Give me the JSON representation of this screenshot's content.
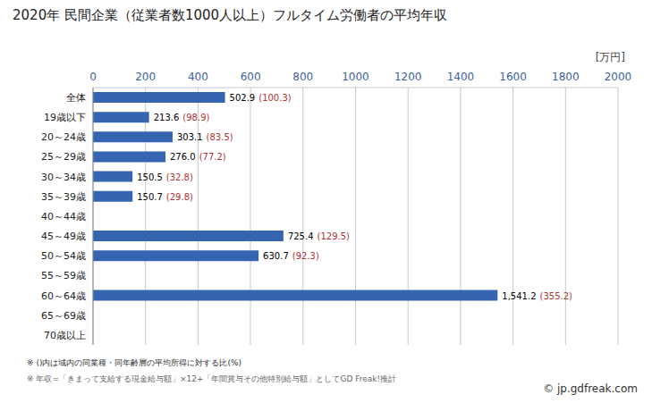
{
  "chart_data": {
    "type": "bar",
    "orientation": "horizontal",
    "title": "2020年 民間企業（従業者数1000人以上）フルタイム労働者の平均年収",
    "x_label": "[万円]",
    "categories": [
      "全体",
      "19歳以下",
      "20～24歳",
      "25～29歳",
      "30～34歳",
      "35～39歳",
      "40～44歳",
      "45～49歳",
      "50～54歳",
      "55～59歳",
      "60～64歳",
      "65～69歳",
      "70歳以上"
    ],
    "values": [
      502.9,
      213.6,
      303.1,
      276.0,
      150.5,
      150.7,
      null,
      725.4,
      630.7,
      null,
      1541.2,
      null,
      null
    ],
    "value_labels": [
      "502.9",
      "213.6",
      "303.1",
      "276.0",
      "150.5",
      "150.7",
      null,
      "725.4",
      "630.7",
      null,
      "1,541.2",
      null,
      null
    ],
    "ratio_labels": [
      "(100.3)",
      "(98.9)",
      "(83.5)",
      "(77.2)",
      "(32.8)",
      "(29.8)",
      null,
      "(129.5)",
      "(92.3)",
      null,
      "(355.2)",
      null,
      null
    ],
    "color": "#3565b0",
    "xlim": [
      0,
      2000
    ],
    "xticks": [
      0,
      200,
      400,
      600,
      800,
      1000,
      1200,
      1400,
      1600,
      1800,
      2000
    ],
    "grid": true,
    "data_labels": true,
    "notes": [
      "※ ()内は域内の同業種・同年齢層の平均所得に対する比(%)",
      "※ 年収=「きまって支給する現金給与額」×12+「年間賞与その他特別給与額」としてGD Freak!推計"
    ],
    "source": "© jp.gdfreak.com"
  }
}
